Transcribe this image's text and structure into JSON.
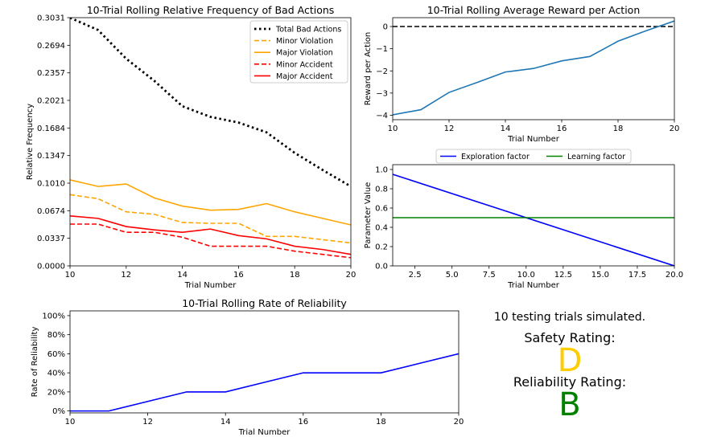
{
  "chart_data": [
    {
      "type": "line",
      "title": "10-Trial Rolling Relative Frequency of Bad Actions",
      "xlabel": "Trial Number",
      "ylabel": "Relative Frequency",
      "xlim": [
        10,
        20
      ],
      "ylim": [
        0,
        0.3031
      ],
      "xticks": [
        "10",
        "12",
        "14",
        "16",
        "18",
        "20"
      ],
      "yticks": [
        "0.0000",
        "0.0337",
        "0.0674",
        "0.1010",
        "0.1347",
        "0.1684",
        "0.2021",
        "0.2357",
        "0.2694",
        "0.3031"
      ],
      "grid": false,
      "legend_position": "top-right",
      "x": [
        10,
        11,
        12,
        13,
        14,
        15,
        16,
        17,
        18,
        19,
        20
      ],
      "series": [
        {
          "name": "Total Bad Actions",
          "color": "#000000",
          "style": "dotted",
          "values": [
            0.303,
            0.288,
            0.253,
            0.226,
            0.195,
            0.182,
            0.175,
            0.163,
            0.138,
            0.117,
            0.097
          ]
        },
        {
          "name": "Minor Violation",
          "color": "#FFA500",
          "style": "dashed",
          "values": [
            0.087,
            0.082,
            0.066,
            0.063,
            0.053,
            0.052,
            0.052,
            0.036,
            0.036,
            0.032,
            0.028
          ]
        },
        {
          "name": "Major Violation",
          "color": "#FFA500",
          "style": "solid",
          "values": [
            0.105,
            0.097,
            0.1,
            0.083,
            0.073,
            0.068,
            0.069,
            0.076,
            0.066,
            0.058,
            0.05
          ]
        },
        {
          "name": "Minor Accident",
          "color": "#FF0000",
          "style": "dashed",
          "values": [
            0.051,
            0.051,
            0.041,
            0.041,
            0.035,
            0.024,
            0.024,
            0.024,
            0.018,
            0.014,
            0.01
          ]
        },
        {
          "name": "Major Accident",
          "color": "#FF0000",
          "style": "solid",
          "values": [
            0.061,
            0.058,
            0.048,
            0.044,
            0.041,
            0.045,
            0.037,
            0.033,
            0.024,
            0.02,
            0.014
          ]
        }
      ]
    },
    {
      "type": "line",
      "title": "10-Trial Rolling Average Reward per Action",
      "xlabel": "Trial Number",
      "ylabel": "Reward per Action",
      "xlim": [
        10,
        20
      ],
      "ylim": [
        -4.2,
        0.4
      ],
      "xticks": [
        "10",
        "12",
        "14",
        "16",
        "18",
        "20"
      ],
      "yticks": [
        "0",
        "−1",
        "−2",
        "−3",
        "−4"
      ],
      "reference_line": {
        "y": 0,
        "style": "dashed",
        "color": "#000000"
      },
      "x": [
        10,
        11,
        12,
        13,
        14,
        15,
        16,
        17,
        18,
        19,
        20
      ],
      "series": [
        {
          "color": "#1F77B4",
          "values": [
            -3.98,
            -3.75,
            -2.97,
            -2.52,
            -2.05,
            -1.89,
            -1.55,
            -1.35,
            -0.66,
            -0.19,
            0.25
          ]
        }
      ]
    },
    {
      "type": "line",
      "xlabel": "Trial Number",
      "ylabel": "Parameter Value",
      "xlim": [
        1,
        20
      ],
      "ylim": [
        0,
        1.05
      ],
      "xticks": [
        "2.5",
        "5.0",
        "7.5",
        "10.0",
        "12.5",
        "15.0",
        "17.5",
        "20.0"
      ],
      "yticks": [
        "0.0",
        "0.2",
        "0.4",
        "0.6",
        "0.8",
        "1.0"
      ],
      "legend_position": "top-center (outside)",
      "x": [
        1,
        20
      ],
      "series": [
        {
          "name": "Exploration factor",
          "color": "#0000FF",
          "values": [
            0.95,
            0.0
          ]
        },
        {
          "name": "Learning factor",
          "color": "#008000",
          "values": [
            0.5,
            0.5
          ]
        }
      ]
    },
    {
      "type": "line",
      "title": "10-Trial Rolling Rate of Reliability",
      "xlabel": "Trial Number",
      "ylabel": "Rate of Reliability",
      "xlim": [
        10,
        20
      ],
      "ylim": [
        -2,
        105
      ],
      "xticks": [
        "10",
        "12",
        "14",
        "16",
        "18",
        "20"
      ],
      "yticks": [
        "0%",
        "20%",
        "40%",
        "60%",
        "80%",
        "100%"
      ],
      "x": [
        10,
        11,
        12,
        13,
        14,
        15,
        16,
        17,
        18,
        19,
        20
      ],
      "series": [
        {
          "color": "#0000FF",
          "values": [
            0,
            0,
            10,
            20,
            20,
            30,
            40,
            40,
            40,
            50,
            60
          ]
        }
      ]
    }
  ],
  "summary": {
    "trials_line": "10 testing trials simulated.",
    "safety_label": "Safety Rating:",
    "safety_grade": "D",
    "safety_color": "#FFCC00",
    "reliability_label": "Reliability Rating:",
    "reliability_grade": "B",
    "reliability_color": "#008000"
  }
}
